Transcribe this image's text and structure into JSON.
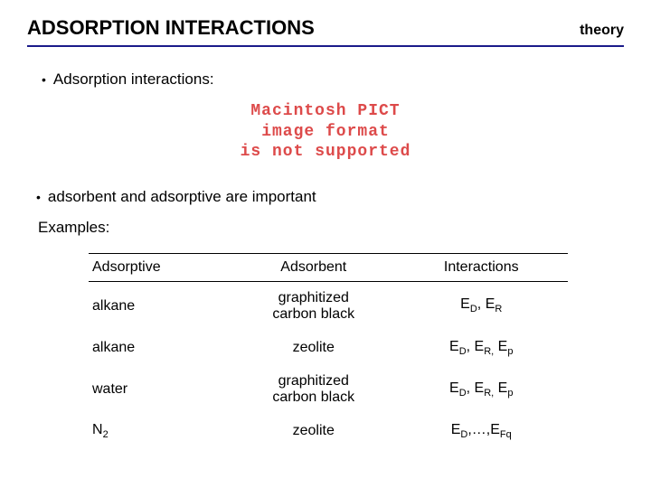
{
  "header": {
    "title": "ADSORPTION INTERACTIONS",
    "tag": "theory",
    "rule_color": "#1a1a8a"
  },
  "bullets": {
    "b1": "Adsorption interactions:",
    "b2": "adsorbent and adsorptive are important"
  },
  "pict": {
    "line1": "Macintosh PICT",
    "line2": "image format",
    "line3": "is not supported",
    "color": "#dd4a4a"
  },
  "examples_label": "Examples:",
  "table": {
    "columns": {
      "c0": "Adsorptive",
      "c1": "Adsorbent",
      "c2": "Interactions"
    },
    "rows": [
      {
        "adsorptive": "alkane",
        "adsorbent_html": "graphitized<br>carbon black",
        "interactions_html": "E<span class='sub'>D</span>, E<span class='sub'>R</span>"
      },
      {
        "adsorptive": "alkane",
        "adsorbent_html": "zeolite",
        "interactions_html": "E<span class='sub'>D</span>, E<span class='sub'>R,</span> E<span class='sub'>p</span>"
      },
      {
        "adsorptive": "water",
        "adsorbent_html": "graphitized<br>carbon black",
        "interactions_html": "E<span class='sub'>D</span>, E<span class='sub'>R,</span> E<span class='sub'>p</span>"
      },
      {
        "adsorptive_html": "N<span class='sub'>2</span>",
        "adsorbent_html": "zeolite",
        "interactions_html": "E<span class='sub'>D</span>,…,E<span class='sub'>Fq</span>"
      }
    ]
  }
}
